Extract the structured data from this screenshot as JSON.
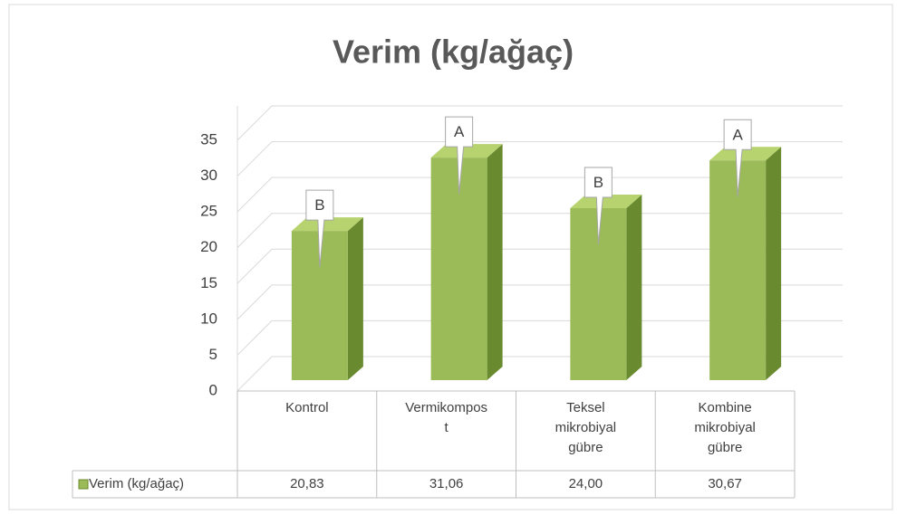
{
  "chart_data": {
    "type": "bar3d",
    "title": "Verim  (kg/ağaç)",
    "categories": [
      "Kontrol",
      "Vermikompost",
      "Teksel mikrobiyal gübre",
      "Kombine mikrobiyal gübre"
    ],
    "series": [
      {
        "name": "Verim  (kg/ağaç)",
        "color": "#9bbb59",
        "values": [
          20.83,
          31.06,
          24.0,
          30.67
        ],
        "value_labels": [
          "20,83",
          "31,06",
          "24,00",
          "30,67"
        ]
      }
    ],
    "annotations": [
      "B",
      "A",
      "B",
      "A"
    ],
    "ylim": [
      0,
      35
    ],
    "yticks": [
      0,
      5,
      10,
      15,
      20,
      25,
      30,
      35
    ],
    "grid": true,
    "data_table": true
  }
}
